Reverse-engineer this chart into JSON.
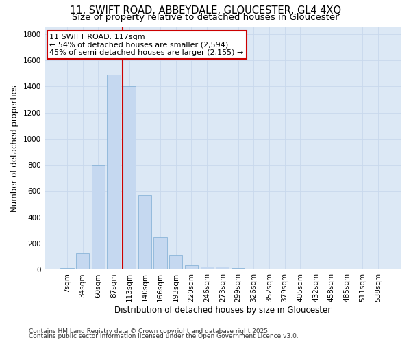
{
  "title1": "11, SWIFT ROAD, ABBEYDALE, GLOUCESTER, GL4 4XQ",
  "title2": "Size of property relative to detached houses in Gloucester",
  "xlabel": "Distribution of detached houses by size in Gloucester",
  "ylabel": "Number of detached properties",
  "categories": [
    "7sqm",
    "34sqm",
    "60sqm",
    "87sqm",
    "113sqm",
    "140sqm",
    "166sqm",
    "193sqm",
    "220sqm",
    "246sqm",
    "273sqm",
    "299sqm",
    "326sqm",
    "352sqm",
    "379sqm",
    "405sqm",
    "432sqm",
    "458sqm",
    "485sqm",
    "511sqm",
    "538sqm"
  ],
  "values": [
    15,
    130,
    800,
    1490,
    1400,
    570,
    250,
    110,
    35,
    25,
    25,
    15,
    5,
    0,
    0,
    0,
    0,
    0,
    0,
    0,
    0
  ],
  "bar_color": "#c5d8f0",
  "bar_edge_color": "#8ab4d8",
  "vline_x_index": 4,
  "vline_color": "#cc0000",
  "annotation_text": "11 SWIFT ROAD: 117sqm\n← 54% of detached houses are smaller (2,594)\n45% of semi-detached houses are larger (2,155) →",
  "annotation_box_color": "#ffffff",
  "annotation_box_edge_color": "#cc0000",
  "ylim": [
    0,
    1850
  ],
  "yticks": [
    0,
    200,
    400,
    600,
    800,
    1000,
    1200,
    1400,
    1600,
    1800
  ],
  "grid_color": "#c8d8ec",
  "bg_color": "#dce8f5",
  "fig_bg_color": "#ffffff",
  "footer1": "Contains HM Land Registry data © Crown copyright and database right 2025.",
  "footer2": "Contains public sector information licensed under the Open Government Licence v3.0.",
  "title_fontsize": 10.5,
  "subtitle_fontsize": 9.5,
  "axis_label_fontsize": 8.5,
  "tick_fontsize": 7.5,
  "annotation_fontsize": 8,
  "footer_fontsize": 6.5
}
